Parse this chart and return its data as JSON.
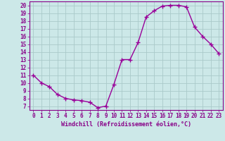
{
  "x": [
    0,
    1,
    2,
    3,
    4,
    5,
    6,
    7,
    8,
    9,
    10,
    11,
    12,
    13,
    14,
    15,
    16,
    17,
    18,
    19,
    20,
    21,
    22,
    23
  ],
  "y": [
    11,
    10,
    9.5,
    8.5,
    8,
    7.8,
    7.7,
    7.5,
    6.8,
    7,
    9.8,
    13,
    13,
    15.2,
    18.5,
    19.3,
    19.9,
    20,
    20,
    19.8,
    17.2,
    16,
    15,
    13.8
  ],
  "line_color": "#990099",
  "marker": "+",
  "marker_size": 4,
  "bg_color": "#cce8e8",
  "grid_color": "#aacaca",
  "xlabel": "Windchill (Refroidissement éolien,°C)",
  "xlim": [
    -0.5,
    23.5
  ],
  "ylim": [
    6.5,
    20.5
  ],
  "yticks": [
    7,
    8,
    9,
    10,
    11,
    12,
    13,
    14,
    15,
    16,
    17,
    18,
    19,
    20
  ],
  "xticks": [
    0,
    1,
    2,
    3,
    4,
    5,
    6,
    7,
    8,
    9,
    10,
    11,
    12,
    13,
    14,
    15,
    16,
    17,
    18,
    19,
    20,
    21,
    22,
    23
  ],
  "label_color": "#880088",
  "font_size": 5.5,
  "xlabel_fontsize": 6.0,
  "linewidth": 1.0,
  "marker_lw": 1.0
}
